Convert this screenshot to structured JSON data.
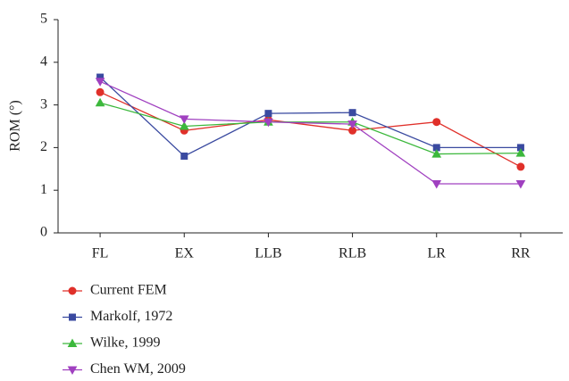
{
  "chart_data": {
    "type": "line",
    "y_label": "ROM (°)",
    "categories": [
      "FL",
      "EX",
      "LLB",
      "RLB",
      "LR",
      "RR"
    ],
    "series": [
      {
        "name": "Current FEM",
        "color": "#e0302a",
        "marker": "circle",
        "values": [
          3.3,
          2.4,
          2.65,
          2.4,
          2.6,
          1.55
        ]
      },
      {
        "name": "Markolf, 1972",
        "color": "#3a4aa0",
        "marker": "square",
        "values": [
          3.65,
          1.8,
          2.8,
          2.82,
          2.0,
          2.0
        ]
      },
      {
        "name": "Wilke, 1999",
        "color": "#3cb83c",
        "marker": "triangle-up",
        "values": [
          3.05,
          2.5,
          2.6,
          2.6,
          1.85,
          1.87
        ]
      },
      {
        "name": "Chen WM, 2009",
        "color": "#a040c0",
        "marker": "triangle-down",
        "values": [
          3.55,
          2.67,
          2.6,
          2.55,
          1.15,
          1.15
        ]
      }
    ],
    "ylim": [
      0,
      5
    ],
    "yticks": [
      0,
      1,
      2,
      3,
      4,
      5
    ],
    "legend": "bottom-left"
  }
}
